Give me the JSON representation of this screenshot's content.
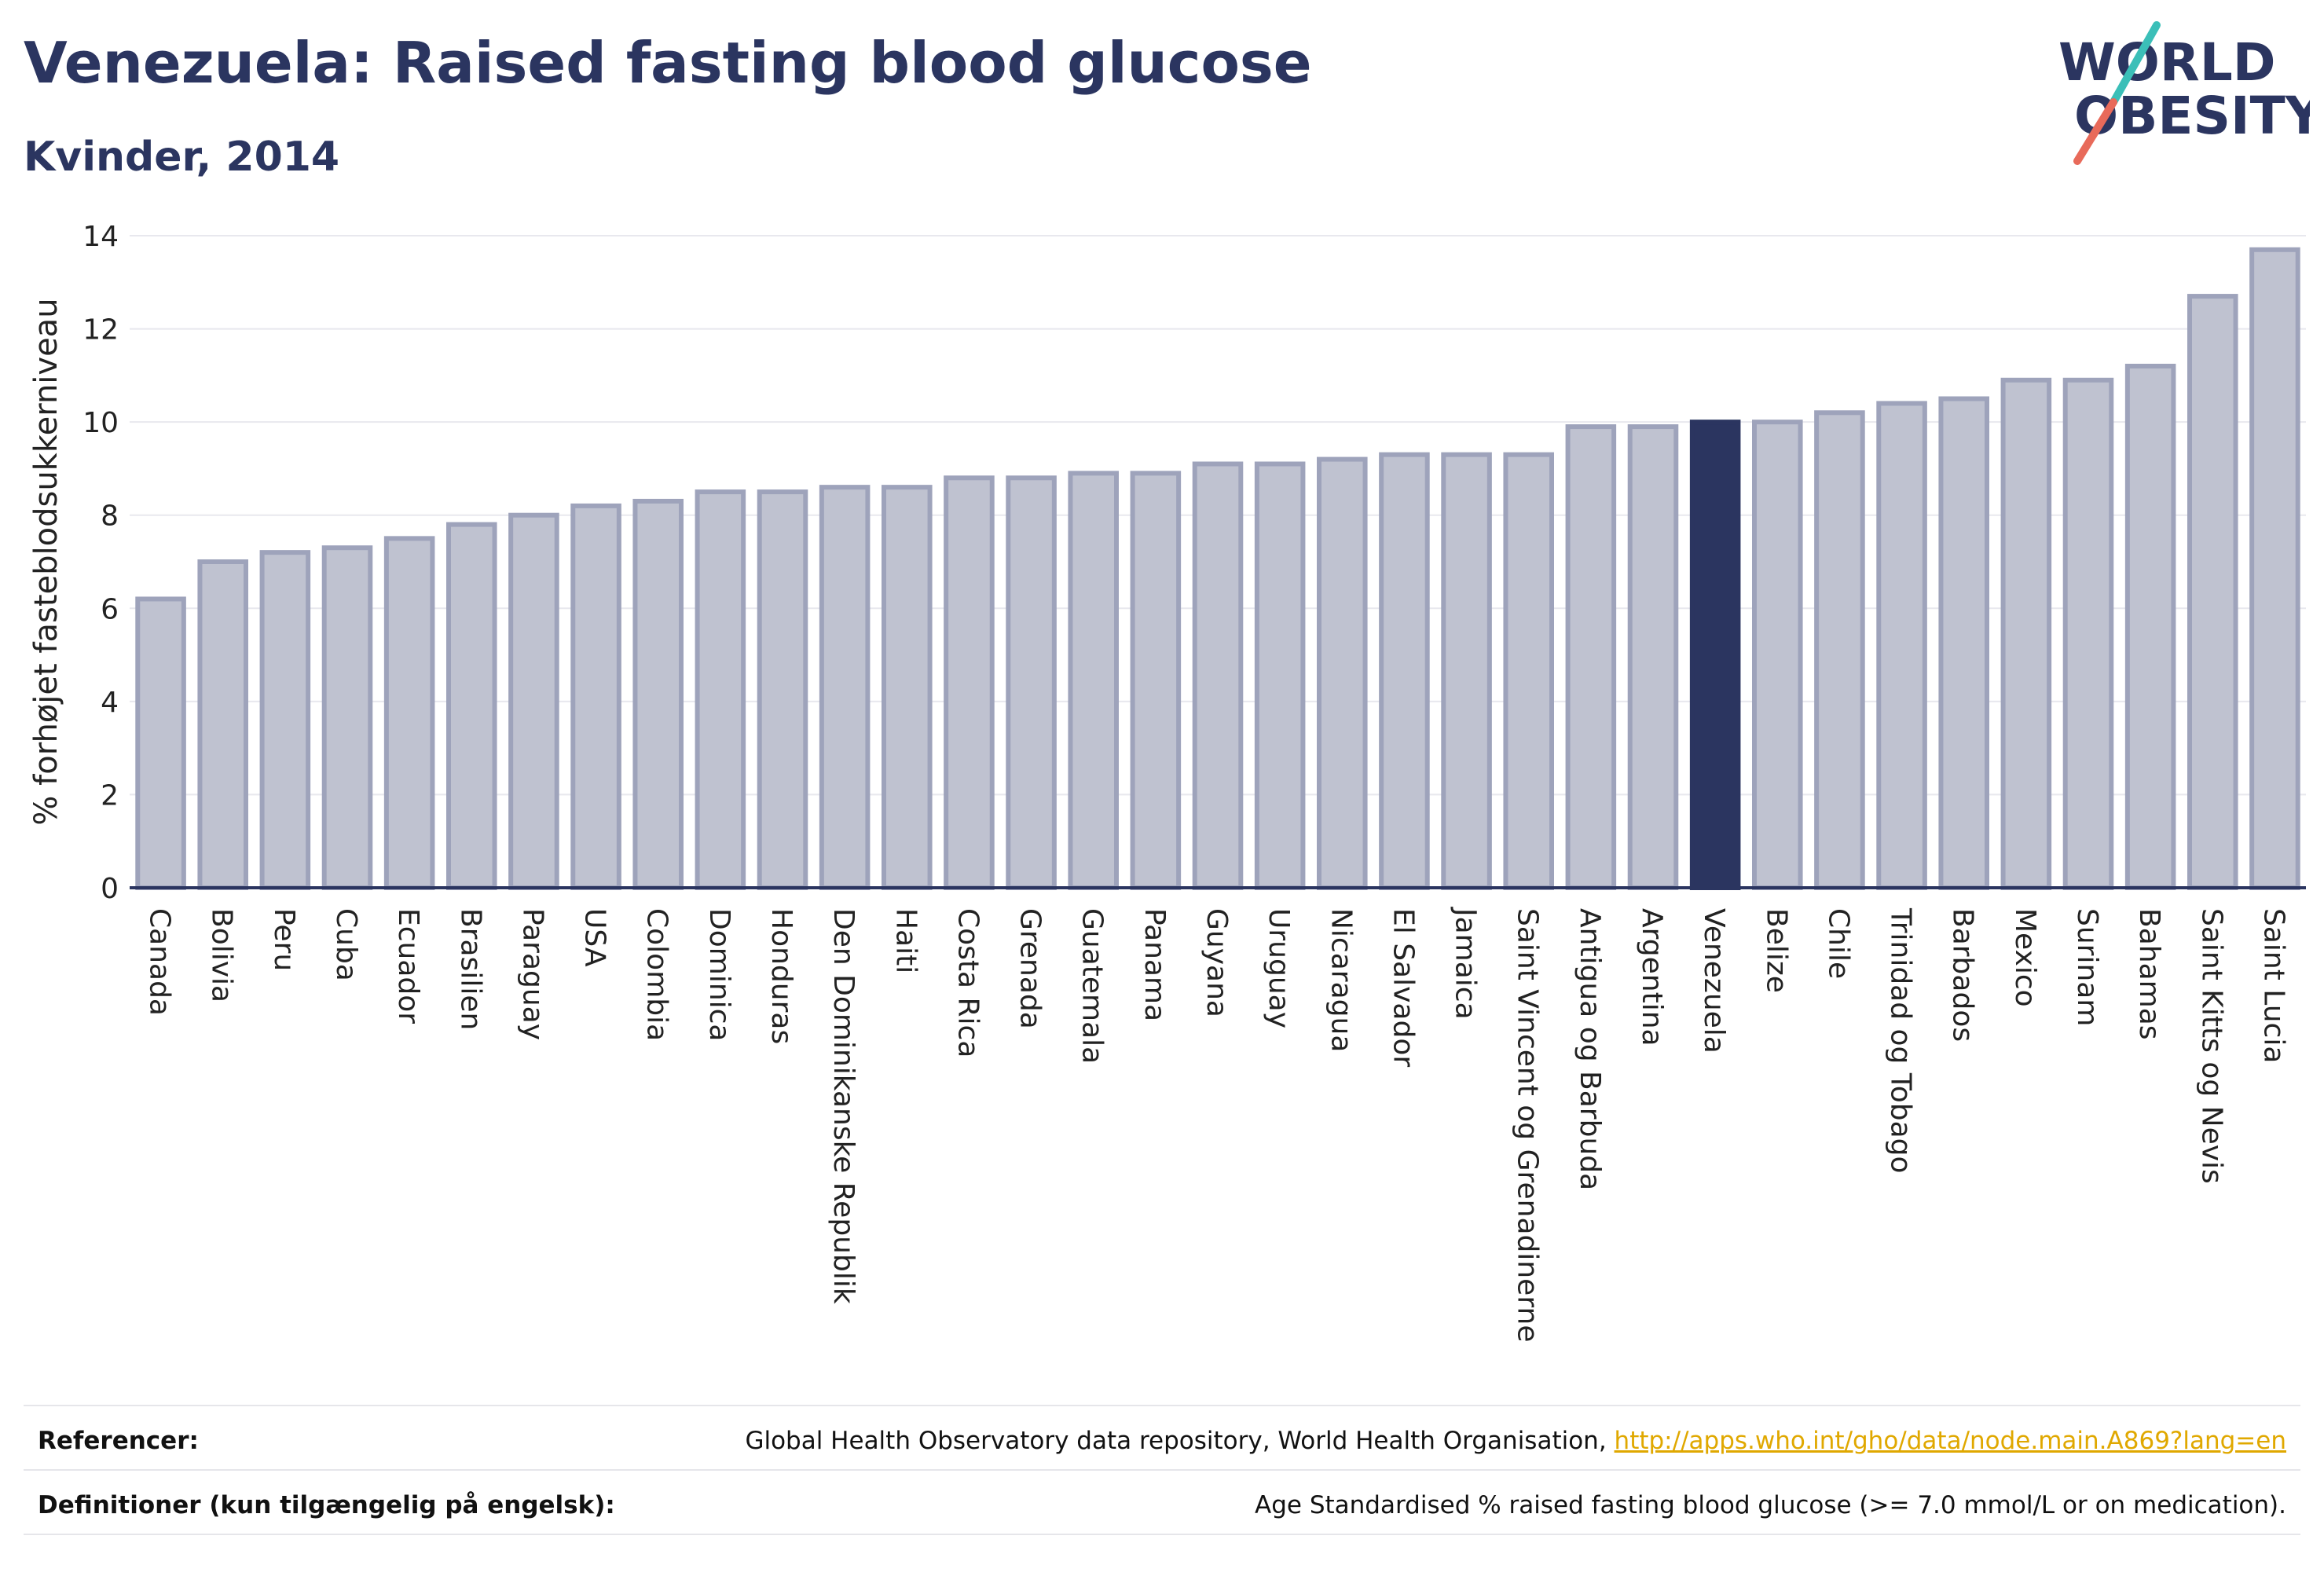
{
  "header": {
    "title": "Venezuela: Raised fasting blood glucose",
    "subtitle": "Kvinder, 2014"
  },
  "logo": {
    "line1": "WORLD",
    "line2": "OBESITY",
    "text_color": "#2b3560",
    "slash_color_top": "#3bbfb8",
    "slash_color_bottom": "#e86a5a"
  },
  "chart_data": {
    "type": "bar",
    "ylabel": "% forhøjet fasteblodsukkerniveau",
    "xlabel": "",
    "ylim": [
      0,
      14
    ],
    "yticks": [
      0,
      2,
      4,
      6,
      8,
      10,
      12,
      14
    ],
    "grid": true,
    "highlight": "Venezuela",
    "colors": {
      "bar_fill": "#bfc2d0",
      "bar_stroke": "#9ea3bb",
      "highlight_fill": "#2b3560",
      "grid": "#e8e8ee",
      "axis": "#2b3560"
    },
    "categories": [
      "Canada",
      "Bolivia",
      "Peru",
      "Cuba",
      "Ecuador",
      "Brasilien",
      "Paraguay",
      "USA",
      "Colombia",
      "Dominica",
      "Honduras",
      "Den Dominikanske Republik",
      "Haiti",
      "Costa Rica",
      "Grenada",
      "Guatemala",
      "Panama",
      "Guyana",
      "Uruguay",
      "Nicaragua",
      "El Salvador",
      "Jamaica",
      "Saint Vincent og Grenadinerne",
      "Antigua og Barbuda",
      "Argentina",
      "Venezuela",
      "Belize",
      "Chile",
      "Trinidad og Tobago",
      "Barbados",
      "Mexico",
      "Surinam",
      "Bahamas",
      "Saint Kitts og Nevis",
      "Saint Lucia"
    ],
    "values": [
      6.2,
      7.0,
      7.2,
      7.3,
      7.5,
      7.8,
      8.0,
      8.2,
      8.3,
      8.5,
      8.5,
      8.6,
      8.6,
      8.8,
      8.8,
      8.9,
      8.9,
      9.1,
      9.1,
      9.2,
      9.3,
      9.3,
      9.3,
      9.9,
      9.9,
      10.0,
      10.0,
      10.2,
      10.4,
      10.5,
      10.9,
      10.9,
      11.2,
      12.7,
      13.7
    ]
  },
  "footer": {
    "references_label": "Referencer:",
    "references_text": "Global Health Observatory data repository, World Health Organisation, ",
    "references_link": "http://apps.who.int/gho/data/node.main.A869?lang=en",
    "definitions_label": "Definitioner (kun tilgængelig på engelsk):",
    "definitions_text": "Age Standardised % raised fasting blood glucose (>= 7.0 mmol/L or on medication)."
  }
}
